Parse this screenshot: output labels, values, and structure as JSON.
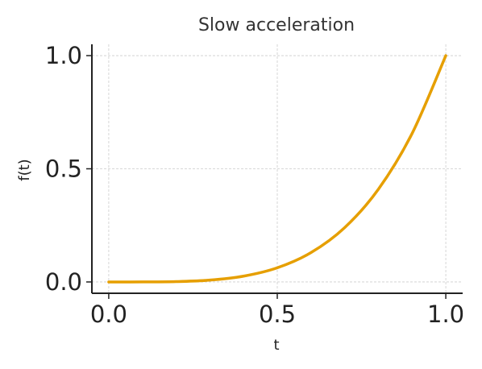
{
  "chart_data": {
    "type": "line",
    "title": "Slow acceleration",
    "xlabel": "t",
    "ylabel": "f(t)",
    "xlim": [
      -0.05,
      1.05
    ],
    "ylim": [
      -0.05,
      1.05
    ],
    "xticks": [
      0.0,
      0.5,
      1.0
    ],
    "yticks": [
      0.0,
      0.5,
      1.0
    ],
    "xtick_labels": [
      "0.0",
      "0.5",
      "1.0"
    ],
    "ytick_labels": [
      "0.0",
      "0.5",
      "1.0"
    ],
    "grid": true,
    "series": [
      {
        "color": "#E69F00",
        "x": [
          0.0,
          0.1,
          0.2,
          0.3,
          0.4,
          0.5,
          0.6,
          0.7,
          0.8,
          0.9,
          1.0
        ],
        "y": [
          0.0,
          0.0001,
          0.0016,
          0.0081,
          0.0256,
          0.0625,
          0.1296,
          0.2401,
          0.4096,
          0.6561,
          1.0
        ]
      }
    ]
  }
}
